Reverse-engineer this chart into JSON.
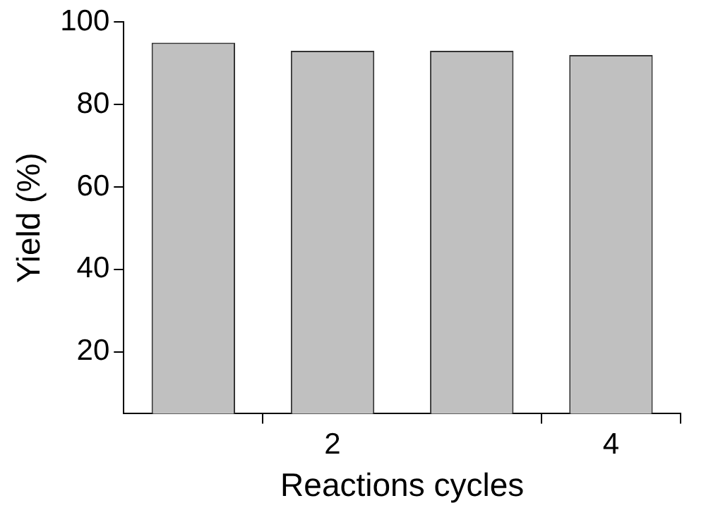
{
  "chart_data": {
    "type": "bar",
    "xlabel": "Reactions cycles",
    "ylabel": "Yield (%)",
    "categories": [
      null,
      "2",
      null,
      "4"
    ],
    "values": [
      95,
      93,
      93,
      92
    ],
    "color": "#c0c0c0",
    "ylim": [
      5,
      100
    ],
    "yticks": [
      20,
      40,
      60,
      80,
      100
    ],
    "grid": false,
    "legend": false
  }
}
